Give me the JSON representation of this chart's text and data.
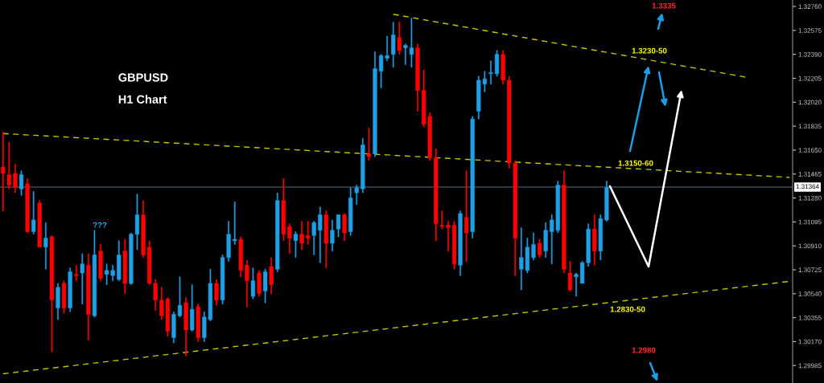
{
  "chart_data": {
    "type": "candlestick",
    "title": "GBPUSD",
    "subtitle": "H1 Chart",
    "categories": [
      null,
      null,
      null,
      null,
      null,
      null,
      null,
      null,
      null,
      null,
      null,
      null,
      null,
      null,
      null,
      null,
      null,
      null,
      null,
      null,
      null,
      null,
      null,
      null,
      null,
      null,
      null,
      null,
      null,
      null,
      null,
      null,
      null,
      null,
      null,
      null,
      null,
      null,
      null,
      null,
      null,
      null,
      null,
      null,
      null,
      null,
      null,
      null,
      null,
      null,
      null,
      null,
      null,
      null,
      null,
      null,
      null,
      null,
      null,
      null,
      null,
      null,
      null,
      null,
      null,
      null,
      null,
      null,
      null,
      null,
      null,
      null,
      null,
      null,
      null,
      null,
      null,
      null,
      null,
      null,
      null,
      null,
      null,
      null,
      null,
      null,
      null,
      null,
      null,
      null,
      null,
      null,
      null,
      null,
      null,
      null,
      null,
      null,
      null,
      null,
      null,
      null,
      null,
      null,
      null,
      null,
      null,
      null,
      null,
      null,
      null,
      null,
      null,
      null,
      null,
      null,
      null,
      null,
      null,
      null,
      null,
      null,
      null,
      null,
      null,
      null,
      null,
      null,
      null,
      null
    ],
    "ohlc": [
      [
        1.3152,
        1.3179,
        1.3118,
        1.3147
      ],
      [
        1.3146,
        1.3171,
        1.3135,
        1.3138
      ],
      [
        1.3147,
        1.3154,
        1.3132,
        1.3136
      ],
      [
        1.3135,
        1.3149,
        1.313,
        1.3146
      ],
      [
        1.3139,
        1.3143,
        1.3101,
        1.3102
      ],
      [
        1.3102,
        1.3133,
        1.31,
        1.3111
      ],
      [
        1.3124,
        1.3126,
        1.309,
        1.309
      ],
      [
        1.309,
        1.3109,
        1.3073,
        1.3097
      ],
      [
        1.3098,
        1.3099,
        1.3009,
        1.3049
      ],
      [
        1.3043,
        1.3062,
        1.3034,
        1.3059
      ],
      [
        1.3062,
        1.3064,
        1.3039,
        1.3043
      ],
      [
        1.3043,
        1.3074,
        1.304,
        1.3071
      ],
      [
        1.3069,
        1.3076,
        1.3064,
        1.3068
      ],
      [
        1.307,
        1.3085,
        1.3046,
        1.3077
      ],
      [
        1.3076,
        1.3085,
        1.3018,
        1.3038
      ],
      [
        1.3037,
        1.3103,
        1.3036,
        1.3084
      ],
      [
        1.3087,
        1.3092,
        1.3064,
        1.3066
      ],
      [
        1.3069,
        1.3077,
        1.3061,
        1.3072
      ],
      [
        1.3068,
        1.3076,
        1.3064,
        1.3072
      ],
      [
        1.3065,
        1.3095,
        1.3064,
        1.3084
      ],
      [
        1.3087,
        1.3096,
        1.3054,
        1.3062
      ],
      [
        1.3062,
        1.3101,
        1.3061,
        1.31
      ],
      [
        1.31,
        1.3131,
        1.3088,
        1.3115
      ],
      [
        1.3115,
        1.3126,
        1.3082,
        1.3084
      ],
      [
        1.309,
        1.3095,
        1.3061,
        1.3062
      ],
      [
        1.3062,
        1.3065,
        1.3041,
        1.3049
      ],
      [
        1.3049,
        1.3059,
        1.3034,
        1.3037
      ],
      [
        1.305,
        1.3051,
        1.3021,
        1.3025
      ],
      [
        1.302,
        1.304,
        1.3016,
        1.3038
      ],
      [
        1.3037,
        1.3067,
        1.3036,
        1.3045
      ],
      [
        1.3047,
        1.3051,
        1.3006,
        1.3026
      ],
      [
        1.3026,
        1.3061,
        1.3025,
        1.3042
      ],
      [
        1.3044,
        1.3046,
        1.3017,
        1.302
      ],
      [
        1.302,
        1.304,
        1.3017,
        1.3036
      ],
      [
        1.3034,
        1.3073,
        1.3033,
        1.3062
      ],
      [
        1.3062,
        1.3065,
        1.3045,
        1.3049
      ],
      [
        1.3049,
        1.3084,
        1.3046,
        1.3082
      ],
      [
        1.3082,
        1.311,
        1.3079,
        1.31
      ],
      [
        1.3095,
        1.3125,
        1.3092,
        1.3096
      ],
      [
        1.3096,
        1.3098,
        1.3067,
        1.3072
      ],
      [
        1.3076,
        1.308,
        1.3044,
        1.3064
      ],
      [
        1.3052,
        1.3074,
        1.305,
        1.3064
      ],
      [
        1.307,
        1.3072,
        1.3052,
        1.3054
      ],
      [
        1.3056,
        1.3073,
        1.3047,
        1.3071
      ],
      [
        1.3075,
        1.3082,
        1.3054,
        1.3061
      ],
      [
        1.3073,
        1.3132,
        1.3071,
        1.3126
      ],
      [
        1.3126,
        1.3143,
        1.3095,
        1.31
      ],
      [
        1.3106,
        1.3108,
        1.3085,
        1.3097
      ],
      [
        1.3095,
        1.3102,
        1.3082,
        1.31
      ],
      [
        1.31,
        1.311,
        1.3088,
        1.3093
      ],
      [
        1.3099,
        1.311,
        1.3092,
        1.3097
      ],
      [
        1.3099,
        1.311,
        1.3084,
        1.3109
      ],
      [
        1.3103,
        1.3121,
        1.3078,
        1.3115
      ],
      [
        1.3115,
        1.3118,
        1.3074,
        1.3093
      ],
      [
        1.3093,
        1.3111,
        1.3087,
        1.3103
      ],
      [
        1.3104,
        1.3115,
        1.3098,
        1.3115
      ],
      [
        1.3115,
        1.3116,
        1.3095,
        1.3101
      ],
      [
        1.3102,
        1.3136,
        1.3099,
        1.3128
      ],
      [
        1.3132,
        1.3138,
        1.3123,
        1.3136
      ],
      [
        1.3135,
        1.3174,
        1.3132,
        1.3169
      ],
      [
        1.3162,
        1.3182,
        1.3157,
        1.316
      ],
      [
        1.3162,
        1.3241,
        1.316,
        1.3228
      ],
      [
        1.3226,
        1.3239,
        1.3213,
        1.3238
      ],
      [
        1.3236,
        1.3253,
        1.3234,
        1.3238
      ],
      [
        1.3239,
        1.3264,
        1.3229,
        1.3254
      ],
      [
        1.3252,
        1.3264,
        1.3239,
        1.3242
      ],
      [
        1.3244,
        1.3247,
        1.3231,
        1.3246
      ],
      [
        1.3239,
        1.3267,
        1.3229,
        1.3244
      ],
      [
        1.3244,
        1.3247,
        1.3195,
        1.3211
      ],
      [
        1.3211,
        1.3227,
        1.3183,
        1.3185
      ],
      [
        1.3191,
        1.3194,
        1.3157,
        1.3159
      ],
      [
        1.3159,
        1.3166,
        1.3095,
        1.3108
      ],
      [
        1.3107,
        1.3118,
        1.3104,
        1.3106
      ],
      [
        1.3107,
        1.311,
        1.3087,
        1.3105
      ],
      [
        1.3107,
        1.311,
        1.3073,
        1.3077
      ],
      [
        1.3076,
        1.3118,
        1.3068,
        1.3116
      ],
      [
        1.3113,
        1.3149,
        1.3079,
        1.3101
      ],
      [
        1.3102,
        1.3191,
        1.3097,
        1.3189
      ],
      [
        1.3195,
        1.3222,
        1.3189,
        1.3219
      ],
      [
        1.3216,
        1.3226,
        1.321,
        1.322
      ],
      [
        1.3224,
        1.3234,
        1.3216,
        1.3225
      ],
      [
        1.3224,
        1.3242,
        1.3222,
        1.3239
      ],
      [
        1.3239,
        1.3242,
        1.3216,
        1.3219
      ],
      [
        1.3219,
        1.3222,
        1.3151,
        1.3155
      ],
      [
        1.3155,
        1.3157,
        1.3068,
        1.3097
      ],
      [
        1.3073,
        1.3105,
        1.3057,
        1.3082
      ],
      [
        1.3072,
        1.3097,
        1.307,
        1.309
      ],
      [
        1.3082,
        1.3101,
        1.308,
        1.3092
      ],
      [
        1.3093,
        1.3096,
        1.3082,
        1.3084
      ],
      [
        1.3087,
        1.3109,
        1.3082,
        1.3103
      ],
      [
        1.3102,
        1.3115,
        1.3077,
        1.3111
      ],
      [
        1.3103,
        1.3141,
        1.3101,
        1.3138
      ],
      [
        1.3138,
        1.3149,
        1.307,
        1.3073
      ],
      [
        1.307,
        1.3079,
        1.3056,
        1.3057
      ],
      [
        1.3067,
        1.307,
        1.3052,
        1.3069
      ],
      [
        1.3062,
        1.3079,
        1.3062,
        1.3078
      ],
      [
        1.3078,
        1.3108,
        1.3075,
        1.3104
      ],
      [
        1.3104,
        1.3115,
        1.3076,
        1.3087
      ],
      [
        1.3087,
        1.3115,
        1.308,
        1.3112
      ],
      [
        1.3111,
        1.3141,
        1.311,
        1.3136
      ],
      null,
      null,
      null,
      null,
      null,
      null,
      null,
      null,
      null,
      null,
      null,
      null,
      null,
      null,
      null,
      null,
      null,
      null,
      null,
      null,
      null,
      null,
      null,
      null,
      null,
      null,
      null,
      null,
      null,
      null
    ],
    "colors": [
      "#ff0000",
      "#ff0000",
      "#ff0000",
      "#1e9fe6",
      "#ff0000",
      "#1e9fe6",
      "#ff0000",
      "#1e9fe6",
      "#ff0000",
      "#1e9fe6",
      "#ff0000",
      "#1e9fe6",
      "#ff0000",
      "#1e9fe6",
      "#ff0000",
      "#1e9fe6",
      "#ff0000",
      "#1e9fe6",
      "#1e9fe6",
      "#1e9fe6",
      "#ff0000",
      "#1e9fe6",
      "#1e9fe6",
      "#ff0000",
      "#ff0000",
      "#ff0000",
      "#ff0000",
      "#ff0000",
      "#1e9fe6",
      "#1e9fe6",
      "#ff0000",
      "#1e9fe6",
      "#ff0000",
      "#1e9fe6",
      "#1e9fe6",
      "#ff0000",
      "#1e9fe6",
      "#1e9fe6",
      "#1e9fe6",
      "#ff0000",
      "#ff0000",
      "#1e9fe6",
      "#ff0000",
      "#1e9fe6",
      "#ff0000",
      "#1e9fe6",
      "#ff0000",
      "#ff0000",
      "#1e9fe6",
      "#ff0000",
      "#ff0000",
      "#1e9fe6",
      "#1e9fe6",
      "#ff0000",
      "#1e9fe6",
      "#1e9fe6",
      "#ff0000",
      "#1e9fe6",
      "#1e9fe6",
      "#1e9fe6",
      "#ff0000",
      "#1e9fe6",
      "#1e9fe6",
      "#1e9fe6",
      "#1e9fe6",
      "#ff0000",
      "#1e9fe6",
      "#1e9fe6",
      "#ff0000",
      "#ff0000",
      "#ff0000",
      "#ff0000",
      "#ff0000",
      "#ff0000",
      "#ff0000",
      "#1e9fe6",
      "#ff0000",
      "#1e9fe6",
      "#1e9fe6",
      "#1e9fe6",
      "#1e9fe6",
      "#1e9fe6",
      "#ff0000",
      "#ff0000",
      "#ff0000",
      "#1e9fe6",
      "#1e9fe6",
      "#1e9fe6",
      "#ff0000",
      "#1e9fe6",
      "#1e9fe6",
      "#1e9fe6",
      "#ff0000",
      "#ff0000",
      "#1e9fe6",
      "#1e9fe6",
      "#1e9fe6",
      "#ff0000",
      "#1e9fe6",
      "#1e9fe6",
      null,
      null,
      null,
      null,
      null,
      null,
      null,
      null,
      null,
      null,
      null,
      null,
      null,
      null,
      null,
      null,
      null,
      null,
      null,
      null,
      null,
      null,
      null,
      null,
      null,
      null,
      null,
      null,
      null,
      null
    ],
    "series": [
      {
        "type": "line",
        "color": "#c4c400",
        "line_style": "dashed",
        "values": [
          null,
          null,
          null,
          null,
          null,
          null,
          null,
          null,
          null,
          null,
          null,
          null,
          null,
          null,
          null,
          null,
          null,
          null,
          null,
          null,
          null,
          null,
          null,
          null,
          null,
          null,
          null,
          null,
          null,
          null,
          null,
          null,
          null,
          null,
          null,
          null,
          null,
          null,
          null,
          null,
          null,
          null,
          null,
          null,
          null,
          null,
          null,
          null,
          null,
          null,
          null,
          null,
          null,
          null,
          null,
          null,
          null,
          null,
          null,
          null,
          null,
          null,
          null,
          null,
          1.327,
          1.32691,
          1.32683,
          1.32675,
          1.32666,
          1.32658,
          1.32649,
          1.32641,
          1.32633,
          1.32624,
          1.32616,
          1.32607,
          1.32599,
          1.32591,
          1.32582,
          1.32574,
          1.32565,
          1.32557,
          1.32548,
          1.3254,
          1.32532,
          1.32523,
          1.32515,
          1.32506,
          1.32498,
          1.3249,
          1.32481,
          1.32473,
          1.32464,
          1.32456,
          1.32448,
          1.32439,
          1.32431,
          1.32422,
          1.32414,
          1.32406,
          1.32397,
          1.32389,
          1.3238,
          1.32372,
          1.32364,
          1.32355,
          1.32347,
          1.32338,
          1.3233,
          1.32321,
          1.32313,
          1.32305,
          1.32296,
          1.32288,
          1.32279,
          1.32271,
          1.32263,
          1.32254,
          1.32246,
          1.32237,
          1.32229,
          1.32221,
          1.32212,
          null,
          null,
          null,
          null,
          null,
          null,
          null
        ]
      },
      {
        "type": "line",
        "color": "#c4c400",
        "line_style": "dashed",
        "values": [
          1.31778,
          1.31775,
          1.31773,
          1.3177,
          1.31767,
          1.31765,
          1.31762,
          1.3176,
          1.31757,
          1.31754,
          1.31752,
          1.31749,
          1.31746,
          1.31744,
          1.31741,
          1.31739,
          1.31736,
          1.31733,
          1.31731,
          1.31728,
          1.31725,
          1.31723,
          1.3172,
          1.31718,
          1.31715,
          1.31712,
          1.3171,
          1.31707,
          1.31704,
          1.31702,
          1.31699,
          1.31697,
          1.31694,
          1.31691,
          1.31689,
          1.31686,
          1.31683,
          1.31681,
          1.31678,
          1.31676,
          1.31673,
          1.3167,
          1.31668,
          1.31665,
          1.31662,
          1.3166,
          1.31657,
          1.31655,
          1.31652,
          1.31649,
          1.31647,
          1.31644,
          1.31641,
          1.31639,
          1.31636,
          1.31634,
          1.31631,
          1.31628,
          1.31626,
          1.31623,
          1.3162,
          1.31618,
          1.31615,
          1.31613,
          1.3161,
          1.31607,
          1.31605,
          1.31602,
          1.31599,
          1.31597,
          1.31594,
          1.31591,
          1.31589,
          1.31586,
          1.31584,
          1.31581,
          1.31578,
          1.31576,
          1.31573,
          1.3157,
          1.31568,
          1.31565,
          1.31563,
          1.3156,
          1.31557,
          1.31555,
          1.31552,
          1.31549,
          1.31547,
          1.31544,
          1.31542,
          1.31539,
          1.31536,
          1.31534,
          1.31531,
          1.31528,
          1.31526,
          1.31523,
          1.31521,
          1.31518,
          1.31515,
          1.31513,
          1.3151,
          1.31507,
          1.31505,
          1.31502,
          1.315,
          1.31497,
          1.31494,
          1.31492,
          1.31489,
          1.31486,
          1.31484,
          1.31481,
          1.31479,
          1.31476,
          1.31473,
          1.31471,
          1.31468,
          1.31465,
          1.31463,
          1.3146,
          1.31458,
          1.31455,
          1.31452,
          1.3145,
          1.31447,
          1.31444,
          1.31442,
          1.31439
        ]
      },
      {
        "type": "line",
        "color": "#c4c400",
        "line_style": "dashed",
        "values": [
          1.29921,
          1.29927,
          1.29932,
          1.29938,
          1.29943,
          1.29949,
          1.29954,
          1.2996,
          1.29965,
          1.29971,
          1.29976,
          1.29982,
          1.29987,
          1.29993,
          1.29999,
          1.30004,
          1.3001,
          1.30015,
          1.30021,
          1.30026,
          1.30032,
          1.30037,
          1.30043,
          1.30048,
          1.30054,
          1.3006,
          1.30065,
          1.30071,
          1.30076,
          1.30082,
          1.30087,
          1.30093,
          1.30098,
          1.30104,
          1.30109,
          1.30115,
          1.3012,
          1.30126,
          1.30132,
          1.30137,
          1.30143,
          1.30148,
          1.30154,
          1.30159,
          1.30165,
          1.3017,
          1.30176,
          1.30181,
          1.30187,
          1.30192,
          1.30198,
          1.30204,
          1.30209,
          1.30215,
          1.3022,
          1.30226,
          1.30231,
          1.30237,
          1.30242,
          1.30248,
          1.30253,
          1.30259,
          1.30264,
          1.3027,
          1.30276,
          1.30281,
          1.30287,
          1.30292,
          1.30298,
          1.30303,
          1.30309,
          1.30314,
          1.3032,
          1.30325,
          1.30331,
          1.30336,
          1.30342,
          1.30348,
          1.30353,
          1.30359,
          1.30364,
          1.3037,
          1.30375,
          1.30381,
          1.30386,
          1.30392,
          1.30397,
          1.30403,
          1.30408,
          1.30414,
          1.3042,
          1.30425,
          1.30431,
          1.30436,
          1.30442,
          1.30447,
          1.30453,
          1.30458,
          1.30464,
          1.30469,
          1.30475,
          1.3048,
          1.30486,
          1.30492,
          1.30497,
          1.30503,
          1.30508,
          1.30514,
          1.30519,
          1.30525,
          1.3053,
          1.30536,
          1.30541,
          1.30547,
          1.30552,
          1.30558,
          1.30564,
          1.30569,
          1.30575,
          1.3058,
          1.30586,
          1.30591,
          1.30597,
          1.30602,
          1.30608,
          1.30613,
          1.30619,
          1.30624,
          1.3063,
          1.30635
        ]
      }
    ],
    "ylim": [
      1.2985,
      1.3281
    ],
    "yticks": [
      {
        "value": 1.3276,
        "label": "1.32760"
      },
      1.32575,
      {
        "value": 1.3239,
        "label": "1.32390"
      },
      1.32205,
      {
        "value": 1.3202,
        "label": "1.32020"
      },
      1.31835,
      {
        "value": 1.3165,
        "label": "1.31650"
      },
      1.31465,
      {
        "value": 1.3128,
        "label": "1.31280"
      },
      1.31095,
      {
        "value": 1.3091,
        "label": "1.30910"
      },
      1.30725,
      {
        "value": 1.3054,
        "label": "1.30540"
      },
      1.30355,
      {
        "value": 1.3017,
        "label": "1.30170"
      },
      1.29985
    ],
    "tick_labels": "y",
    "ref_lines": [
      {
        "axis": "y",
        "value": 1.31364,
        "label": "1.31364",
        "color": "#5d6d80"
      }
    ],
    "annotations": [
      "1.3335",
      "1.3230-50",
      "1.3150-60",
      "1.2830-50",
      "1.2980",
      "???"
    ]
  }
}
